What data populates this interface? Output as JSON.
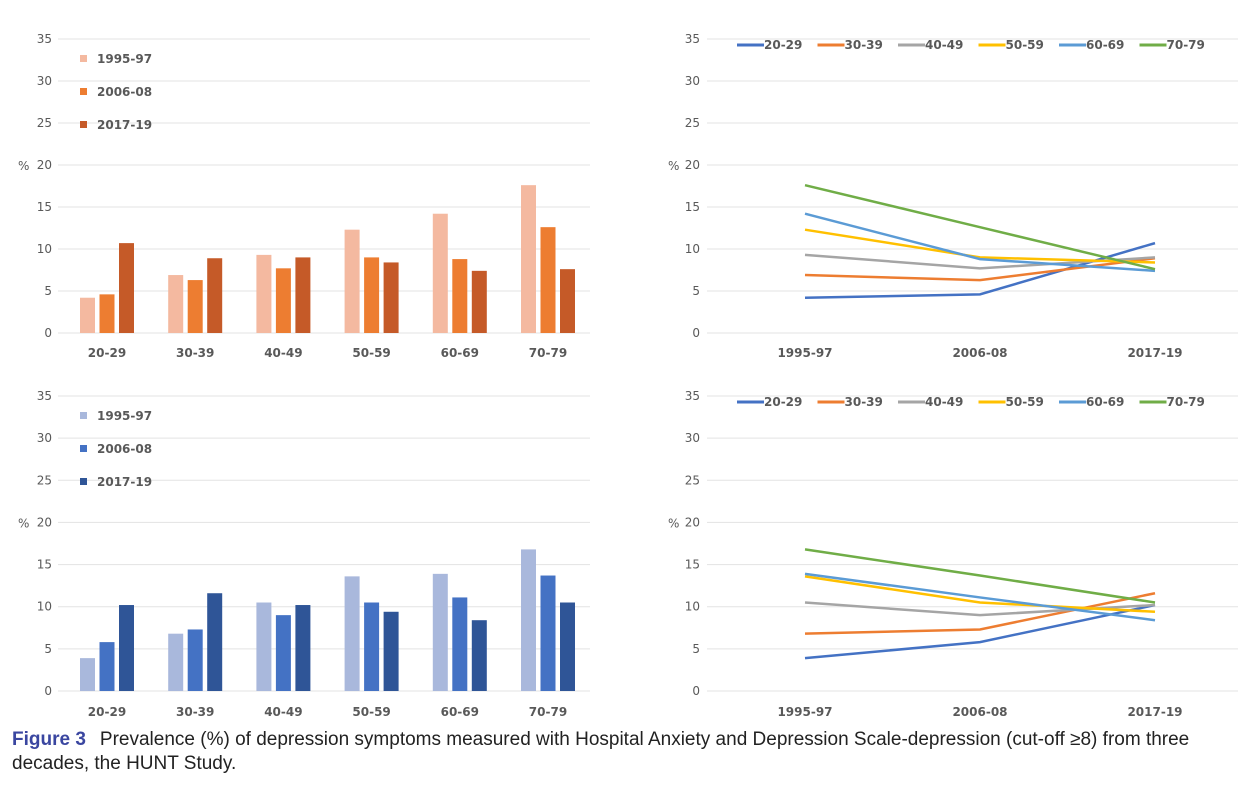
{
  "chart_data": [
    {
      "type": "bar",
      "ylabel": "%",
      "ylim": [
        0,
        35
      ],
      "yticks": [
        0,
        5,
        10,
        15,
        20,
        25,
        30,
        35
      ],
      "grid": true,
      "legend": "top-left",
      "categories": [
        "20-29",
        "30-39",
        "40-49",
        "50-59",
        "60-69",
        "70-79"
      ],
      "series": [
        {
          "name": "1995-97",
          "color": "#F4B9A0",
          "values": [
            4.2,
            6.9,
            9.3,
            12.3,
            14.2,
            17.6
          ]
        },
        {
          "name": "2006-08",
          "color": "#ED7D31",
          "values": [
            4.6,
            6.3,
            7.7,
            9.0,
            8.8,
            12.6
          ]
        },
        {
          "name": "2017-19",
          "color": "#C55A28",
          "values": [
            10.7,
            8.9,
            9.0,
            8.4,
            7.4,
            7.6
          ]
        }
      ]
    },
    {
      "type": "line",
      "ylabel": "%",
      "ylim": [
        0,
        35
      ],
      "yticks": [
        0,
        5,
        10,
        15,
        20,
        25,
        30,
        35
      ],
      "grid": true,
      "legend": "top",
      "categories": [
        "1995-97",
        "2006-08",
        "2017-19"
      ],
      "series": [
        {
          "name": "20-29",
          "color": "#4472C4",
          "values": [
            4.2,
            4.6,
            10.7
          ]
        },
        {
          "name": "30-39",
          "color": "#ED7D31",
          "values": [
            6.9,
            6.3,
            8.9
          ]
        },
        {
          "name": "40-49",
          "color": "#A5A5A5",
          "values": [
            9.3,
            7.7,
            9.0
          ]
        },
        {
          "name": "50-59",
          "color": "#FFC000",
          "values": [
            12.3,
            9.0,
            8.4
          ]
        },
        {
          "name": "60-69",
          "color": "#5B9BD5",
          "values": [
            14.2,
            8.8,
            7.4
          ]
        },
        {
          "name": "70-79",
          "color": "#70AD47",
          "values": [
            17.6,
            12.6,
            7.6
          ]
        }
      ]
    },
    {
      "type": "bar",
      "ylabel": "%",
      "ylim": [
        0,
        35
      ],
      "yticks": [
        0,
        5,
        10,
        15,
        20,
        25,
        30,
        35
      ],
      "grid": true,
      "legend": "top-left",
      "categories": [
        "20-29",
        "30-39",
        "40-49",
        "50-59",
        "60-69",
        "70-79"
      ],
      "series": [
        {
          "name": "1995-97",
          "color": "#A9B8DC",
          "values": [
            3.9,
            6.8,
            10.5,
            13.6,
            13.9,
            16.8
          ]
        },
        {
          "name": "2006-08",
          "color": "#4472C4",
          "values": [
            5.8,
            7.3,
            9.0,
            10.5,
            11.1,
            13.7
          ]
        },
        {
          "name": "2017-19",
          "color": "#2F5597",
          "values": [
            10.2,
            11.6,
            10.2,
            9.4,
            8.4,
            10.5
          ]
        }
      ]
    },
    {
      "type": "line",
      "ylabel": "%",
      "ylim": [
        0,
        35
      ],
      "yticks": [
        0,
        5,
        10,
        15,
        20,
        25,
        30,
        35
      ],
      "grid": true,
      "legend": "top",
      "categories": [
        "1995-97",
        "2006-08",
        "2017-19"
      ],
      "series": [
        {
          "name": "20-29",
          "color": "#4472C4",
          "values": [
            3.9,
            5.8,
            10.2
          ]
        },
        {
          "name": "30-39",
          "color": "#ED7D31",
          "values": [
            6.8,
            7.3,
            11.6
          ]
        },
        {
          "name": "40-49",
          "color": "#A5A5A5",
          "values": [
            10.5,
            9.0,
            10.2
          ]
        },
        {
          "name": "50-59",
          "color": "#FFC000",
          "values": [
            13.6,
            10.5,
            9.4
          ]
        },
        {
          "name": "60-69",
          "color": "#5B9BD5",
          "values": [
            13.9,
            11.1,
            8.4
          ]
        },
        {
          "name": "70-79",
          "color": "#70AD47",
          "values": [
            16.8,
            13.7,
            10.5
          ]
        }
      ]
    }
  ],
  "caption": {
    "label": "Figure 3",
    "text": "Prevalence (%) of depression symptoms measured with Hospital Anxiety and Depression Scale-depression (cut-off ≥8) from three decades, the HUNT Study."
  }
}
